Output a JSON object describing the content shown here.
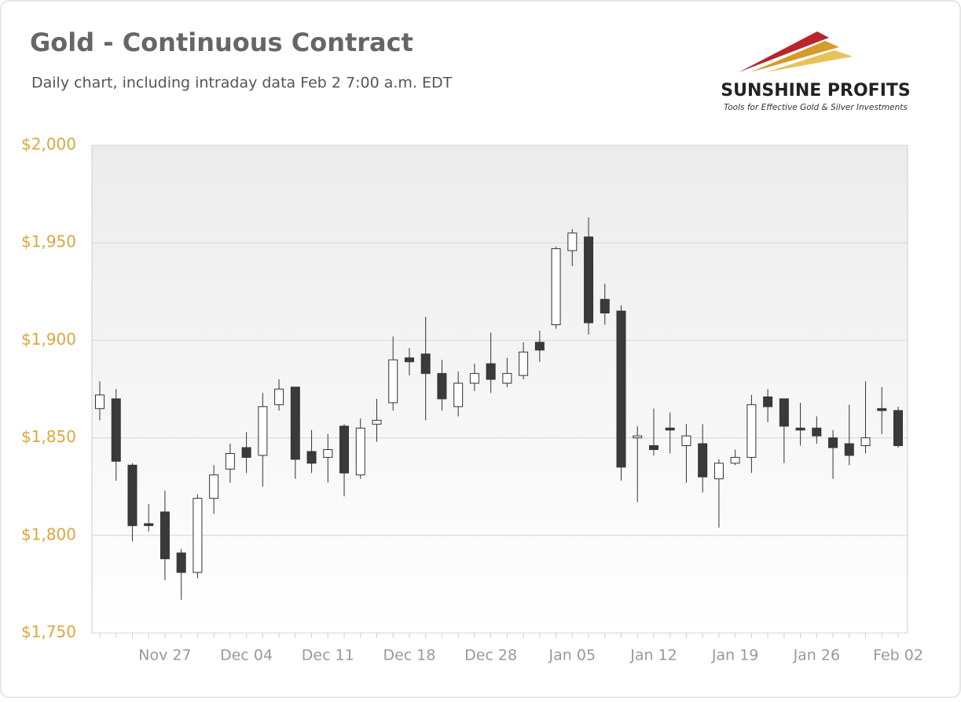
{
  "chart_data": {
    "type": "candlestick",
    "title": "Gold - Continuous Contract",
    "subtitle": "Daily chart, including intraday data Feb 2 7:00 a.m. EDT",
    "logo": {
      "name": "SUNSHINE PROFITS",
      "tagline": "Tools for Effective Gold & Silver Investments"
    },
    "categories": [
      null,
      null,
      null,
      null,
      "Nov 27",
      null,
      null,
      null,
      null,
      "Dec 04",
      null,
      null,
      null,
      null,
      "Dec 11",
      null,
      null,
      null,
      null,
      "Dec 18",
      null,
      null,
      null,
      null,
      "Dec 28",
      null,
      null,
      null,
      null,
      "Jan 05",
      null,
      null,
      null,
      null,
      "Jan 12",
      null,
      null,
      null,
      null,
      "Jan 19",
      null,
      null,
      null,
      null,
      "Jan 26",
      null,
      null,
      null,
      null,
      "Feb 02"
    ],
    "open": [
      1865,
      1870,
      1836,
      1806,
      1812,
      1791,
      1781,
      1819,
      1834,
      1845,
      1841,
      1867,
      1876,
      1843,
      1840,
      1856,
      1831,
      1857,
      1868,
      1891,
      1893,
      1883,
      1866,
      1878,
      1888,
      1878,
      1882,
      1899,
      1908,
      1946,
      1953,
      1921,
      1915,
      1850,
      1846,
      1855,
      1846,
      1847,
      1829,
      1837,
      1840,
      1871,
      1870,
      1855,
      1855,
      1850,
      1847,
      1846,
      1865,
      1864
    ],
    "high": [
      1879,
      1875,
      1837,
      1816,
      1823,
      1793,
      1821,
      1836,
      1847,
      1853,
      1873,
      1880,
      1876,
      1854,
      1852,
      1857,
      1860,
      1870,
      1902,
      1896,
      1912,
      1890,
      1884,
      1888,
      1904,
      1891,
      1899,
      1905,
      1948,
      1957,
      1963,
      1929,
      1918,
      1856,
      1865,
      1863,
      1857,
      1857,
      1839,
      1844,
      1872,
      1875,
      1870,
      1868,
      1861,
      1854,
      1867,
      1879,
      1876,
      1866
    ],
    "low": [
      1859,
      1828,
      1797,
      1802,
      1777,
      1767,
      1778,
      1811,
      1827,
      1832,
      1825,
      1864,
      1829,
      1832,
      1827,
      1820,
      1829,
      1848,
      1864,
      1882,
      1859,
      1864,
      1861,
      1874,
      1873,
      1876,
      1880,
      1889,
      1906,
      1938,
      1903,
      1908,
      1828,
      1817,
      1841,
      1842,
      1827,
      1822,
      1804,
      1836,
      1832,
      1858,
      1837,
      1846,
      1847,
      1829,
      1836,
      1842,
      1852,
      1845
    ],
    "close": [
      1872,
      1838,
      1805,
      1805,
      1788,
      1781,
      1819,
      1831,
      1842,
      1840,
      1866,
      1875,
      1839,
      1837,
      1844,
      1832,
      1855,
      1859,
      1890,
      1889,
      1883,
      1870,
      1878,
      1883,
      1880,
      1883,
      1894,
      1895,
      1947,
      1955,
      1909,
      1914,
      1835,
      1851,
      1844,
      1854,
      1851,
      1830,
      1837,
      1840,
      1867,
      1866,
      1856,
      1854,
      1851,
      1845,
      1841,
      1850,
      1864,
      1846
    ],
    "up_color": "#ffffff",
    "down_color": "#3a3a3a",
    "ylim": [
      1750,
      2000
    ],
    "yticks": [
      {
        "value": 1750,
        "label": "$1,750"
      },
      {
        "value": 1800,
        "label": "$1,800"
      },
      {
        "value": 1850,
        "label": "$1,850"
      },
      {
        "value": 1900,
        "label": "$1,900"
      },
      {
        "value": 1950,
        "label": "$1,950"
      },
      {
        "value": 2000,
        "label": "$2,000"
      }
    ],
    "grid": true
  }
}
